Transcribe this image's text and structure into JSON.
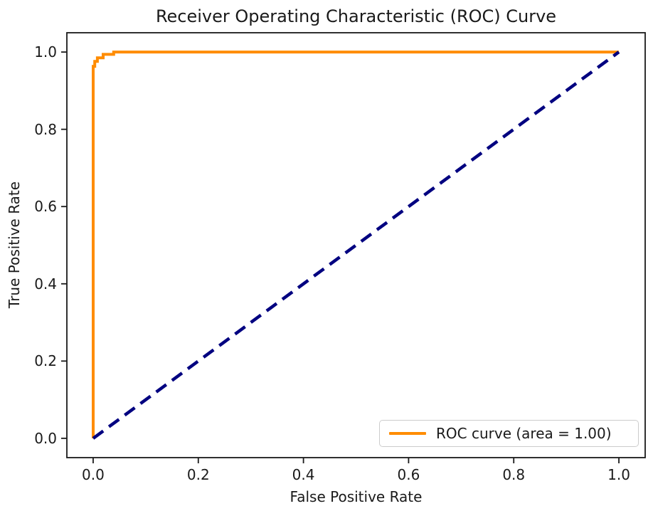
{
  "chart_data": {
    "type": "line",
    "title": "Receiver Operating Characteristic (ROC) Curve",
    "xlabel": "False Positive Rate",
    "ylabel": "True Positive Rate",
    "xlim": [
      -0.05,
      1.05
    ],
    "ylim": [
      -0.05,
      1.05
    ],
    "grid": false,
    "background": "#ffffff",
    "axis_color": "#1a1a1a",
    "x_ticks": {
      "values": [
        0.0,
        0.2,
        0.4,
        0.6,
        0.8,
        1.0
      ],
      "labels": [
        "0.0",
        "0.2",
        "0.4",
        "0.6",
        "0.8",
        "1.0"
      ]
    },
    "y_ticks": {
      "values": [
        0.0,
        0.2,
        0.4,
        0.6,
        0.8,
        1.0
      ],
      "labels": [
        "0.0",
        "0.2",
        "0.4",
        "0.6",
        "0.8",
        "1.0"
      ]
    },
    "series": [
      {
        "name": "roc-curve",
        "color": "#FF8C00",
        "style": "solid",
        "width": 4,
        "points": [
          [
            0.0,
            0.0
          ],
          [
            0.0,
            0.963
          ],
          [
            0.003,
            0.963
          ],
          [
            0.003,
            0.976
          ],
          [
            0.008,
            0.976
          ],
          [
            0.008,
            0.985
          ],
          [
            0.019,
            0.985
          ],
          [
            0.019,
            0.994
          ],
          [
            0.039,
            0.994
          ],
          [
            0.039,
            1.0
          ],
          [
            1.0,
            1.0
          ]
        ]
      },
      {
        "name": "chance-diagonal",
        "color": "#000080",
        "style": "dashed",
        "width": 4.5,
        "points": [
          [
            0.0,
            0.0
          ],
          [
            1.0,
            1.0
          ]
        ]
      }
    ],
    "legend": {
      "position": "lower right",
      "entries": [
        {
          "label": "ROC curve (area = 1.00)",
          "color": "#FF8C00",
          "style": "solid"
        }
      ]
    }
  }
}
